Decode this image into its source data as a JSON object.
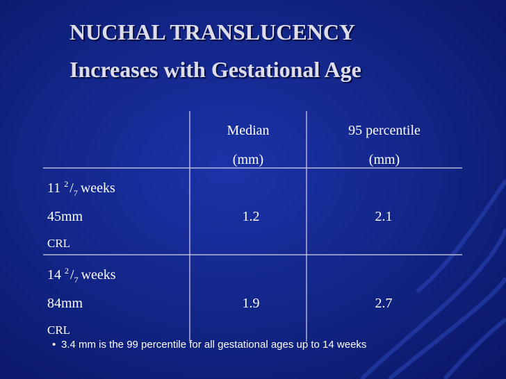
{
  "title": {
    "line1": "NUCHAL TRANSLUCENCY",
    "line2": "Increases with Gestational Age"
  },
  "table": {
    "header": [
      {
        "line1": "Median",
        "line2": "(mm)"
      },
      {
        "line1": "95 percentile",
        "line2": "(mm)"
      }
    ],
    "rows": [
      {
        "weeks_whole": "11",
        "frac_num": "2",
        "frac_sep": "/",
        "frac_den": "7",
        "weeks_unit": "weeks",
        "crl_value": "45mm",
        "crl_label": "CRL",
        "median": 1.2,
        "p95": 2.1
      },
      {
        "weeks_whole": "14",
        "frac_num": "2",
        "frac_sep": "/",
        "frac_den": "7",
        "weeks_unit": "weeks",
        "crl_value": "84mm",
        "crl_label": "CRL",
        "median": 1.9,
        "p95": 2.7
      }
    ]
  },
  "footnote": "3.4 mm is the 99 percentile for all gestational ages up to 14 weeks"
}
